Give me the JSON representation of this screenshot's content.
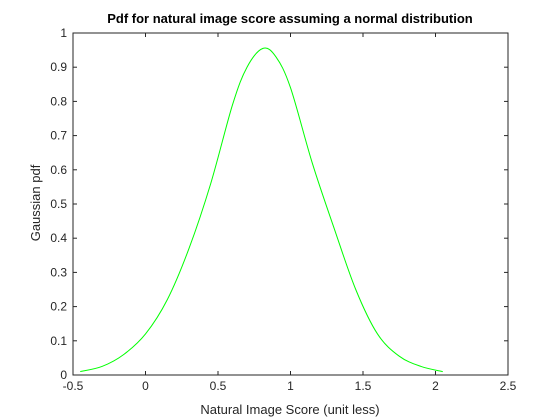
{
  "chart_data": {
    "type": "line",
    "title": "Pdf for natural image score assuming a normal distribution",
    "xlabel": "Natural Image Score (unit less)",
    "ylabel": "Gaussian pdf",
    "xlim": [
      -0.5,
      2.5
    ],
    "ylim": [
      0,
      1
    ],
    "xticks": [
      -0.5,
      0,
      0.5,
      1,
      1.5,
      2,
      2.5
    ],
    "xtick_labels": [
      "-0.5",
      "0",
      "0.5",
      "1",
      "1.5",
      "2",
      "2.5"
    ],
    "yticks": [
      0,
      0.1,
      0.2,
      0.3,
      0.4,
      0.5,
      0.6,
      0.7,
      0.8,
      0.9,
      1
    ],
    "ytick_labels": [
      "0",
      "0.1",
      "0.2",
      "0.3",
      "0.4",
      "0.5",
      "0.6",
      "0.7",
      "0.8",
      "0.9",
      "1"
    ],
    "grid": false,
    "series": [
      {
        "color": "#00ff00",
        "x": [
          -0.45,
          -0.3,
          -0.15,
          0,
          0.15,
          0.3,
          0.45,
          0.6,
          0.7,
          0.81,
          0.9,
          1.0,
          1.15,
          1.3,
          1.45,
          1.6,
          1.75,
          1.9,
          2.05
        ],
        "y": [
          0.01,
          0.025,
          0.06,
          0.12,
          0.22,
          0.37,
          0.56,
          0.79,
          0.9,
          0.955,
          0.93,
          0.84,
          0.62,
          0.43,
          0.25,
          0.12,
          0.055,
          0.025,
          0.01
        ]
      }
    ]
  }
}
